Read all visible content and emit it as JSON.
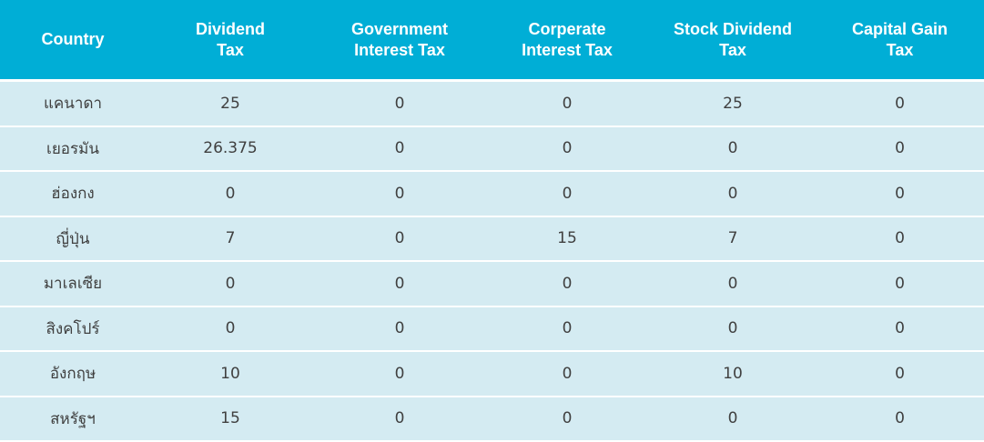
{
  "table": {
    "headers": [
      [
        "Country"
      ],
      [
        "Dividend",
        "Tax"
      ],
      [
        "Government",
        "Interest Tax"
      ],
      [
        "Corperate",
        "Interest Tax"
      ],
      [
        "Stock Dividend",
        "Tax"
      ],
      [
        "Capital Gain",
        "Tax"
      ]
    ],
    "rows": [
      [
        "แคนาดา",
        "25",
        "0",
        "0",
        "25",
        "0"
      ],
      [
        "เยอรมัน",
        "26.375",
        "0",
        "0",
        "0",
        "0"
      ],
      [
        "ฮ่องกง",
        "0",
        "0",
        "0",
        "0",
        "0"
      ],
      [
        "ญี่ปุ่น",
        "7",
        "0",
        "15",
        "7",
        "0"
      ],
      [
        "มาเลเซีย",
        "0",
        "0",
        "0",
        "0",
        "0"
      ],
      [
        "สิงคโปร์",
        "0",
        "0",
        "0",
        "0",
        "0"
      ],
      [
        "อังกฤษ",
        "10",
        "0",
        "0",
        "10",
        "0"
      ],
      [
        "สหรัฐฯ",
        "15",
        "0",
        "0",
        "0",
        "0"
      ]
    ]
  },
  "colors": {
    "header_background": "#00aed6",
    "header_text": "#ffffff",
    "row_background": "#d4ebf2",
    "body_text": "#404040"
  }
}
